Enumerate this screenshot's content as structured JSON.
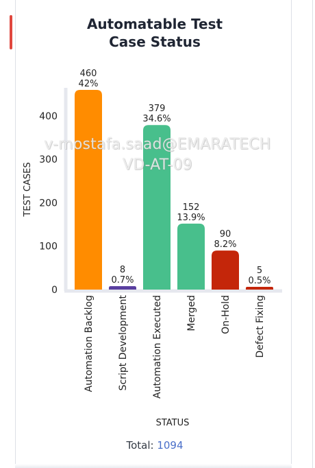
{
  "chart_data": {
    "type": "bar",
    "title": [
      "Automatable Test",
      "Case Status"
    ],
    "xlabel": "STATUS",
    "ylabel": "TEST CASES",
    "ylim": [
      0,
      460
    ],
    "yticks": [
      0,
      100,
      200,
      300,
      400
    ],
    "grid": false,
    "categories": [
      "Automation Backlog",
      "Script Development",
      "Automation Executed",
      "Merged",
      "On-Hold",
      "Defect Fixing"
    ],
    "values": [
      460,
      8,
      379,
      152,
      90,
      5
    ],
    "percent_labels": [
      "42%",
      "0.7%",
      "34.6%",
      "13.9%",
      "8.2%",
      "0.5%"
    ],
    "colors": [
      "#ff8c00",
      "#5a3fa0",
      "#48bf8c",
      "#48bf8c",
      "#c4260a",
      "#c4260a"
    ]
  },
  "total": {
    "label": "Total:",
    "value": "1094"
  },
  "watermark": [
    "v-mostafa.saad@EMARATECH",
    "VD-AT-09"
  ]
}
